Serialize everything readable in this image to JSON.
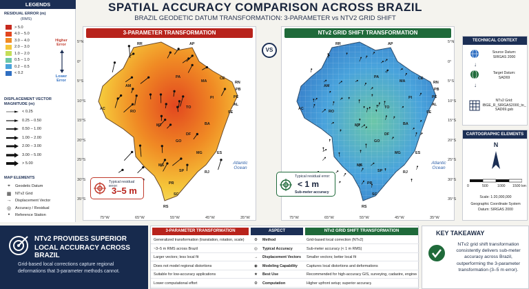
{
  "header": {
    "title": "SPATIAL ACCURACY COMPARISON ACROSS BRAZIL",
    "subtitle": "BRAZIL GEODETIC DATUM TRANSFORMATION: 3-PARAMETER vs NTV2 GRID SHIFT"
  },
  "legend": {
    "title": "LEGENDS",
    "error_title": "RESIDUAL ERROR (m)",
    "error_unit": "(RMS)",
    "error_bins": [
      {
        "label": "> 5.0",
        "color": "#c62a1e"
      },
      {
        "label": "4.0 – 5.0",
        "color": "#e2461f"
      },
      {
        "label": "3.0 – 4.0",
        "color": "#f08a24"
      },
      {
        "label": "2.0 – 3.0",
        "color": "#f5c63a"
      },
      {
        "label": "1.0 – 2.0",
        "color": "#c4de58"
      },
      {
        "label": "0.5 – 1.0",
        "color": "#6cc7a8"
      },
      {
        "label": "0.2 – 0.5",
        "color": "#49a3dc"
      },
      {
        "label": "< 0.2",
        "color": "#2f6fc2"
      }
    ],
    "higher": "Higher Error",
    "lower": "Lower Error",
    "vector_title": "DISPLACEMENT VECTOR",
    "vector_unit": "MAGNITUDE (m)",
    "vector_bins": [
      "< 0.25",
      "0.25 – 0.50",
      "0.50 – 1.00",
      "1.00 – 2.00",
      "2.00 – 3.00",
      "3.00 – 5.00",
      "> 5.00"
    ],
    "map_title": "MAP ELEMENTS",
    "map_items": [
      {
        "label": "Geodetic Datum",
        "icon": "crosshair-icon"
      },
      {
        "label": "NTv2 Grid",
        "icon": "grid-icon"
      },
      {
        "label": "Displacement Vector",
        "icon": "arrow-icon"
      },
      {
        "label": "Accuracy / Residual",
        "icon": "target-icon"
      },
      {
        "label": "Reference Station",
        "icon": "dot-icon"
      }
    ]
  },
  "left_panel": {
    "title": "3-PARAMETER TRANSFORMATION",
    "color": "#b8231c",
    "box_label": "Typical residual error:",
    "box_value": "3–5 m"
  },
  "right_panel": {
    "title": "NTv2 GRID SHIFT TRANSFORMATION",
    "color": "#1f6a3a",
    "box_label": "Typical residual error:",
    "box_value": "< 1 m",
    "box_sub": "Sub-meter accuracy"
  },
  "vs": "VS",
  "ocean": "Atlantic Ocean",
  "lat_labels": [
    "5°N",
    "0°",
    "5°S",
    "10°S",
    "15°S",
    "20°S",
    "25°S",
    "30°S",
    "35°S"
  ],
  "lon_labels": [
    "75°W",
    "65°W",
    "55°W",
    "45°W",
    "35°W"
  ],
  "states": [
    "RR",
    "AP",
    "AM",
    "PA",
    "MA",
    "CE",
    "RN",
    "PB",
    "PE",
    "AL",
    "SE",
    "AC",
    "RO",
    "TO",
    "PI",
    "BA",
    "MT",
    "GO",
    "DF",
    "MG",
    "ES",
    "MS",
    "SP",
    "RJ",
    "PR",
    "SC",
    "RS"
  ],
  "context": {
    "title": "TECHNICAL CONTEXT",
    "source_label": "Source Datum:",
    "source": "SIRGAS 2000",
    "target_label": "Target Datum:",
    "target": "SAD69",
    "grid_label": "NTv2 Grid:",
    "grid": "IBGE_R_SIRGAS2000_to_SAD69.gsb"
  },
  "carto": {
    "title": "CARTOGRAPHIC ELEMENTS",
    "north": "N",
    "scale_ticks": [
      "0",
      "500",
      "1000",
      "1500 km"
    ],
    "scale": "Scale: 1:20,000,000",
    "gcs": "Geographic Coordinate System",
    "datum": "Datum: SIRGAS 2000"
  },
  "bottom": {
    "headline1": "NTv2 PROVIDES SUPERIOR",
    "headline2": "LOCAL ACCURACY ACROSS BRAZIL",
    "body": "Grid-based local corrections capture regional deformations that 3-parameter methods cannot."
  },
  "table": {
    "col1": "3-PARAMETER TRANSFORMATION",
    "col2": "ASPECT",
    "col3": "NTv2 GRID SHIFT TRANSFORMATION",
    "rows": [
      {
        "a": "Generalized transformation (translation, rotation, scale)",
        "b": "Method",
        "c": "Grid-based local correction (NTv2)"
      },
      {
        "a": "~3–5 m RMS across Brazil",
        "b": "Typical Accuracy",
        "c": "Sub-meter accuracy (< 1 m RMS)"
      },
      {
        "a": "Larger vectors; less local fit",
        "b": "Displacement Vectors",
        "c": "Smaller vectors; better local fit"
      },
      {
        "a": "Does not model regional distortions",
        "b": "Modeling Capability",
        "c": "Captures local distortions and deformations"
      },
      {
        "a": "Suitable for low-accuracy applications",
        "b": "Best Use",
        "c": "Recommended for high-accuracy GIS, surveying, cadastre, engineering and mapping"
      },
      {
        "a": "Lower computational effort",
        "b": "Computation",
        "c": "Higher upfront setup; superior accuracy"
      }
    ]
  },
  "takeaway": {
    "title": "KEY TAKEAWAY",
    "text": "NTv2 grid shift transformation consistently delivers sub-meter accuracy across Brazil, outperforming the 3-parameter transformation (3–5 m error)."
  }
}
